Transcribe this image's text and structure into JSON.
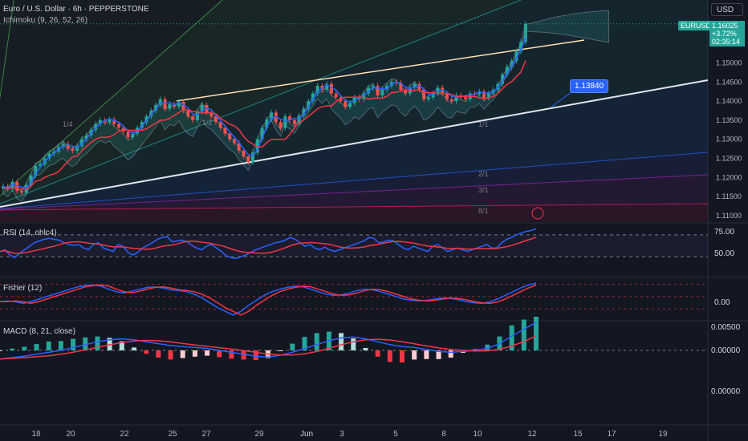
{
  "header": {
    "title": "Euro / U.S. Dollar · 6h · PEPPERSTONE",
    "indicator": "Ichimoku (9, 26, 52, 26)"
  },
  "toolbar": {
    "currency": "USD"
  },
  "price_label": {
    "symbol": "EURUSD",
    "price": "1.16025",
    "change": "+3.72%",
    "countdown": "02:35:14"
  },
  "callout": {
    "value": "1.13840"
  },
  "gann_labels": [
    "1/4",
    "1/2",
    "1/1",
    "2/1",
    "3/1",
    "8/1"
  ],
  "panes": {
    "rsi": {
      "title": "RSI (14, ohlc4)",
      "ticks": [
        "75.00",
        "50.00"
      ]
    },
    "fisher": {
      "title": "Fisher (12)",
      "ticks": [
        "0.00"
      ]
    },
    "macd": {
      "title": "MACD (8, 21, close)",
      "ticks": [
        "0.00500",
        "0.00000",
        "0.00000"
      ]
    }
  },
  "colors": {
    "up": "#26a69a",
    "down": "#ef5350",
    "blue": "#2962ff",
    "red": "#f23645",
    "bg": "#131722"
  },
  "chart_data": {
    "type": "candlestick",
    "x_ticks": [
      "18",
      "20",
      "22",
      "25",
      "27",
      "29",
      "Jun",
      "3",
      "5",
      "8",
      "10",
      "12",
      "15",
      "17",
      "19"
    ],
    "y_ticks": [
      "1.15000",
      "1.14500",
      "1.14000",
      "1.13500",
      "1.13000",
      "1.12500",
      "1.12000",
      "1.11500",
      "1.11000"
    ],
    "ylim": [
      1.1085,
      1.1665
    ],
    "close": [
      1.1177,
      1.117,
      1.1188,
      1.1165,
      1.116,
      1.118,
      1.1205,
      1.123,
      1.1235,
      1.125,
      1.1262,
      1.1268,
      1.128,
      1.1288,
      1.1275,
      1.127,
      1.1282,
      1.13,
      1.131,
      1.1325,
      1.134,
      1.135,
      1.1345,
      1.1352,
      1.134,
      1.133,
      1.132,
      1.1305,
      1.1315,
      1.133,
      1.1345,
      1.136,
      1.1375,
      1.139,
      1.1405,
      1.138,
      1.1392,
      1.1386,
      1.1398,
      1.1375,
      1.136,
      1.135,
      1.1372,
      1.139,
      1.137,
      1.136,
      1.1345,
      1.133,
      1.1315,
      1.13,
      1.129,
      1.127,
      1.1255,
      1.124,
      1.1265,
      1.13,
      1.133,
      1.1352,
      1.137,
      1.1345,
      1.133,
      1.136,
      1.135,
      1.134,
      1.1362,
      1.138,
      1.14,
      1.142,
      1.144,
      1.143,
      1.1445,
      1.142,
      1.141,
      1.14,
      1.1385,
      1.1395,
      1.141,
      1.1405,
      1.142,
      1.1435,
      1.144,
      1.1415,
      1.143,
      1.144,
      1.145,
      1.1448,
      1.143,
      1.142,
      1.1435,
      1.1445,
      1.143,
      1.1405,
      1.141,
      1.142,
      1.1435,
      1.142,
      1.1405,
      1.14,
      1.1415,
      1.141,
      1.1405,
      1.142,
      1.1418,
      1.1425,
      1.1408,
      1.142,
      1.143,
      1.1445,
      1.147,
      1.149,
      1.1505,
      1.153,
      1.1555,
      1.1602
    ],
    "series": [
      {
        "name": "RSI",
        "values": [
          56,
          58,
          52,
          49,
          54,
          58,
          62,
          66,
          68,
          70,
          71,
          70,
          69,
          66,
          64,
          63,
          64,
          60,
          58,
          64,
          66,
          60,
          58,
          56,
          64,
          62,
          55,
          52,
          55,
          60,
          63,
          66,
          70,
          72,
          73,
          67,
          68,
          69,
          67,
          63,
          60,
          58,
          62,
          64,
          60,
          56,
          51,
          49,
          48,
          50,
          52,
          55,
          58,
          60,
          62,
          64,
          66,
          67,
          69,
          72,
          70,
          66,
          62,
          64,
          60,
          58,
          61,
          58,
          56,
          58,
          60,
          62,
          64,
          66,
          68,
          72,
          71,
          66,
          67,
          69,
          68,
          64,
          60,
          58,
          62,
          60,
          58,
          56,
          62,
          64,
          60,
          56,
          58,
          60,
          58,
          56,
          58,
          60,
          62,
          64,
          60,
          60,
          66,
          70,
          72,
          75,
          77,
          79,
          80,
          82
        ]
      },
      {
        "name": "Fisher",
        "values": [
          -0.4,
          -0.35,
          -0.42,
          -0.55,
          -0.4,
          -0.2,
          0.0,
          0.2,
          0.4,
          0.6,
          0.8,
          0.9,
          0.95,
          0.85,
          0.6,
          0.4,
          0.3,
          0.45,
          0.6,
          0.75,
          0.8,
          0.7,
          0.55,
          0.5,
          0.4,
          0.2,
          -0.1,
          -0.5,
          -0.9,
          -1.2,
          -1.5,
          -1.2,
          -0.7,
          -0.3,
          0.1,
          0.4,
          0.6,
          0.75,
          0.85,
          0.8,
          0.6,
          0.4,
          0.2,
          0.1,
          0.15,
          0.3,
          0.5,
          0.6,
          0.55,
          0.4,
          0.2,
          0.0,
          -0.2,
          -0.3,
          -0.35,
          -0.3,
          -0.2,
          -0.1,
          -0.15,
          -0.25,
          -0.4,
          -0.5,
          -0.55,
          -0.45,
          -0.2,
          0.1,
          0.4,
          0.7,
          0.95,
          1.1
        ]
      },
      {
        "name": "MACD",
        "values": [
          -0.0018,
          -0.0015,
          -0.0012,
          -0.0008,
          -0.0004,
          0.0,
          0.0006,
          0.0012,
          0.0018,
          0.0022,
          0.0024,
          0.0022,
          0.0018,
          0.0014,
          0.001,
          0.0008,
          0.0006,
          0.0004,
          0.0,
          -0.0004,
          -0.0008,
          -0.0012,
          -0.0014,
          -0.001,
          -0.0004,
          0.0004,
          0.0012,
          0.002,
          0.0026,
          0.0028,
          0.0024,
          0.0018,
          0.0012,
          0.0008,
          0.0006,
          0.0002,
          -0.0002,
          -0.0004,
          -0.0002,
          0.0,
          0.0004,
          0.0014,
          0.003,
          0.0044,
          0.0058
        ]
      }
    ]
  }
}
